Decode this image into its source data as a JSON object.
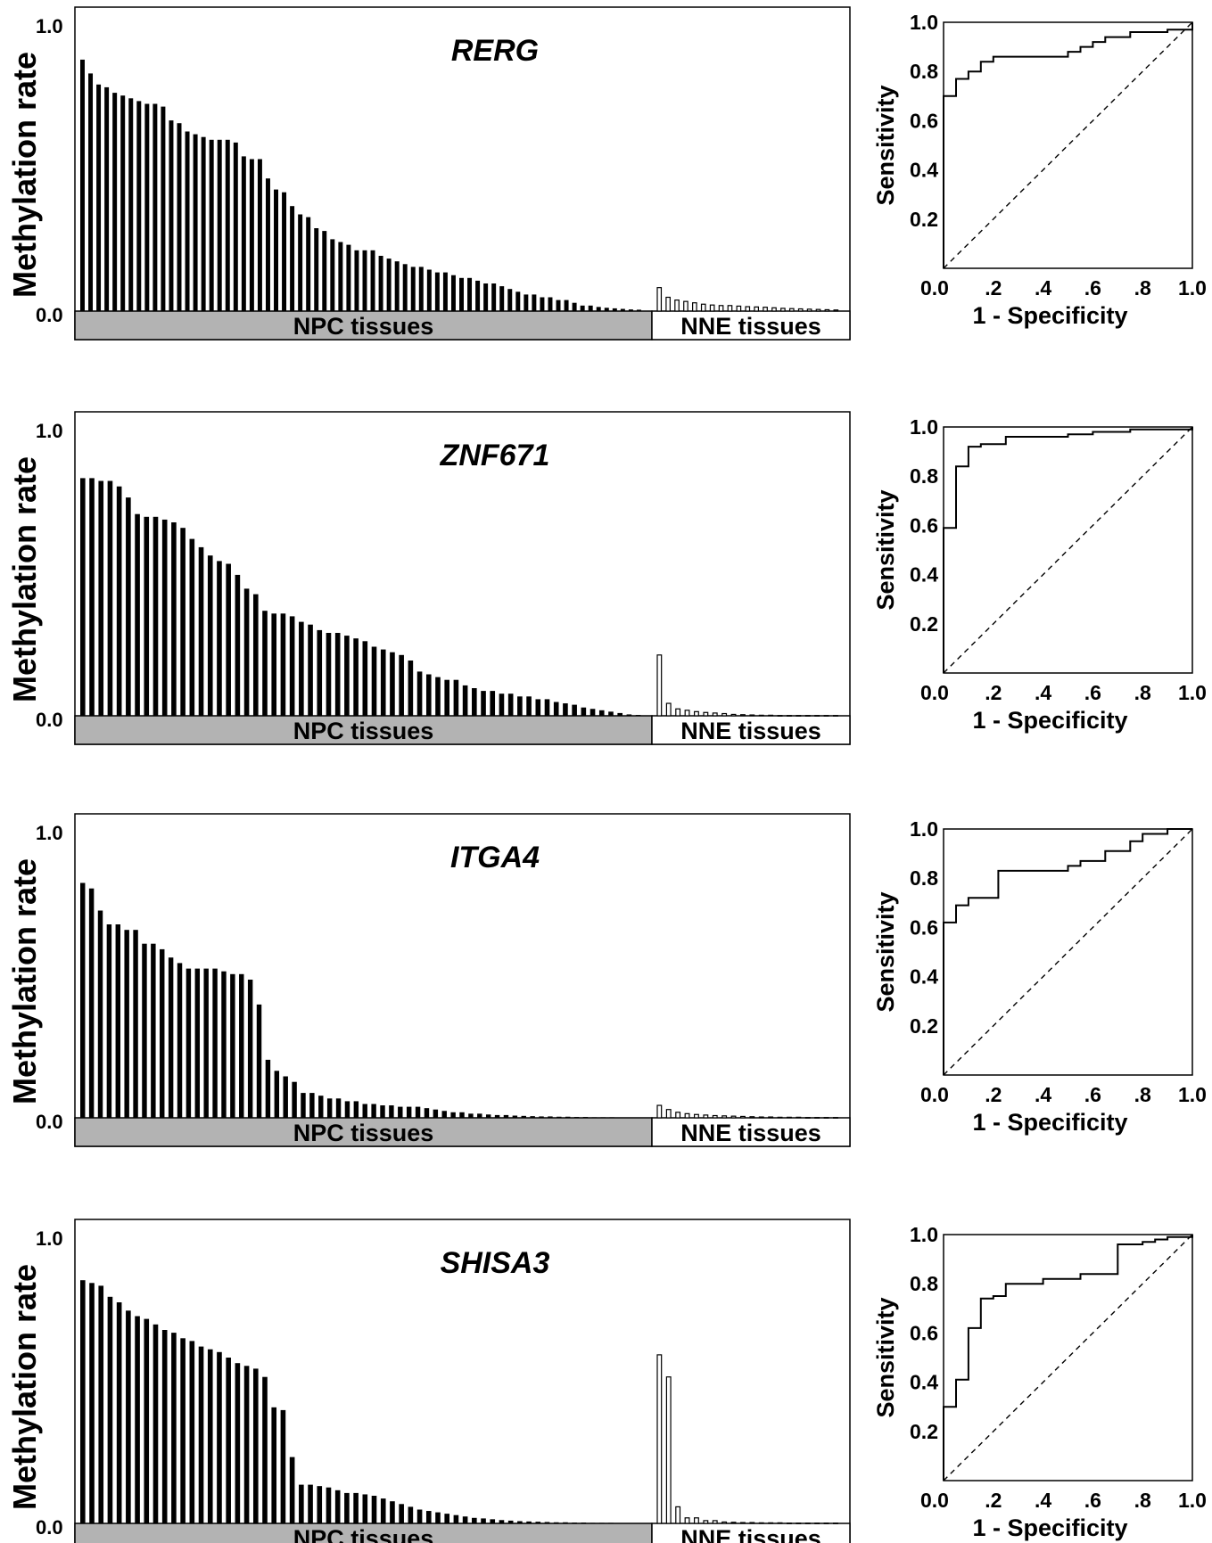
{
  "colors": {
    "npc_bar": "#000000",
    "nne_bar": "#ffffff",
    "npc_band": "#b3b3b3",
    "nne_band": "#ffffff"
  },
  "chart_data": [
    {
      "type": "bar",
      "gene": "RERG",
      "ylabel": "Methylation rate",
      "ylim": [
        0,
        1.0
      ],
      "yticks": [
        "0.0",
        "1.0"
      ],
      "groups": [
        "NPC tissues",
        "NNE tissues"
      ],
      "npc_values": [
        0.91,
        0.86,
        0.82,
        0.81,
        0.79,
        0.78,
        0.77,
        0.76,
        0.75,
        0.75,
        0.74,
        0.69,
        0.68,
        0.65,
        0.64,
        0.63,
        0.62,
        0.62,
        0.62,
        0.61,
        0.56,
        0.55,
        0.55,
        0.48,
        0.44,
        0.43,
        0.38,
        0.35,
        0.34,
        0.3,
        0.29,
        0.26,
        0.25,
        0.24,
        0.22,
        0.22,
        0.22,
        0.2,
        0.19,
        0.18,
        0.17,
        0.16,
        0.16,
        0.15,
        0.14,
        0.14,
        0.13,
        0.12,
        0.12,
        0.11,
        0.1,
        0.1,
        0.09,
        0.08,
        0.07,
        0.06,
        0.06,
        0.05,
        0.05,
        0.04,
        0.04,
        0.03,
        0.02,
        0.02,
        0.015,
        0.012,
        0.01,
        0.008,
        0.006,
        0.005
      ],
      "nne_values": [
        0.085,
        0.05,
        0.04,
        0.035,
        0.03,
        0.025,
        0.022,
        0.02,
        0.02,
        0.018,
        0.016,
        0.015,
        0.014,
        0.012,
        0.01,
        0.009,
        0.008,
        0.007,
        0.006,
        0.005,
        0.004
      ],
      "roc": {
        "xlabel": "1 - Specificity",
        "ylabel": "Sensitivity",
        "xticks": [
          "0.0",
          ".2",
          ".4",
          ".6",
          ".8",
          "1.0"
        ],
        "yticks": [
          "0.2",
          "0.4",
          "0.6",
          "0.8",
          "1.0"
        ],
        "points": [
          [
            0,
            0
          ],
          [
            0,
            0.7
          ],
          [
            0.05,
            0.7
          ],
          [
            0.05,
            0.77
          ],
          [
            0.1,
            0.77
          ],
          [
            0.1,
            0.8
          ],
          [
            0.15,
            0.8
          ],
          [
            0.15,
            0.84
          ],
          [
            0.2,
            0.84
          ],
          [
            0.2,
            0.86
          ],
          [
            0.5,
            0.86
          ],
          [
            0.5,
            0.88
          ],
          [
            0.55,
            0.88
          ],
          [
            0.55,
            0.9
          ],
          [
            0.6,
            0.9
          ],
          [
            0.6,
            0.92
          ],
          [
            0.65,
            0.92
          ],
          [
            0.65,
            0.94
          ],
          [
            0.75,
            0.94
          ],
          [
            0.75,
            0.96
          ],
          [
            0.9,
            0.96
          ],
          [
            0.9,
            0.97
          ],
          [
            1.0,
            0.97
          ],
          [
            1.0,
            1.0
          ]
        ]
      }
    },
    {
      "type": "bar",
      "gene": "ZNF671",
      "ylabel": "Methylation rate",
      "ylim": [
        0,
        1.0
      ],
      "yticks": [
        "0.0",
        "1.0"
      ],
      "groups": [
        "NPC tissues",
        "NNE tissues"
      ],
      "npc_values": [
        0.86,
        0.86,
        0.85,
        0.85,
        0.83,
        0.79,
        0.73,
        0.72,
        0.72,
        0.71,
        0.7,
        0.68,
        0.64,
        0.61,
        0.58,
        0.56,
        0.55,
        0.51,
        0.46,
        0.44,
        0.38,
        0.37,
        0.37,
        0.36,
        0.34,
        0.33,
        0.31,
        0.3,
        0.3,
        0.29,
        0.28,
        0.27,
        0.25,
        0.24,
        0.23,
        0.22,
        0.2,
        0.16,
        0.15,
        0.14,
        0.13,
        0.13,
        0.11,
        0.1,
        0.09,
        0.09,
        0.08,
        0.08,
        0.07,
        0.07,
        0.06,
        0.06,
        0.05,
        0.045,
        0.04,
        0.03,
        0.025,
        0.02,
        0.015,
        0.01,
        0.005,
        0.003
      ],
      "nne_values": [
        0.22,
        0.045,
        0.025,
        0.02,
        0.015,
        0.012,
        0.01,
        0.008,
        0.005,
        0.004,
        0.003,
        0.002,
        0.002,
        0.001,
        0.001,
        0.001,
        0.001,
        0.001,
        0.001,
        0.001
      ],
      "roc": {
        "xlabel": "1 - Specificity",
        "ylabel": "Sensitivity",
        "xticks": [
          "0.0",
          ".2",
          ".4",
          ".6",
          ".8",
          "1.0"
        ],
        "yticks": [
          "0.2",
          "0.4",
          "0.6",
          "0.8",
          "1.0"
        ],
        "points": [
          [
            0,
            0
          ],
          [
            0,
            0.59
          ],
          [
            0.05,
            0.59
          ],
          [
            0.05,
            0.84
          ],
          [
            0.1,
            0.84
          ],
          [
            0.1,
            0.92
          ],
          [
            0.15,
            0.92
          ],
          [
            0.15,
            0.93
          ],
          [
            0.25,
            0.93
          ],
          [
            0.25,
            0.96
          ],
          [
            0.5,
            0.96
          ],
          [
            0.5,
            0.97
          ],
          [
            0.6,
            0.97
          ],
          [
            0.6,
            0.98
          ],
          [
            0.75,
            0.98
          ],
          [
            0.75,
            0.99
          ],
          [
            1.0,
            0.99
          ],
          [
            1.0,
            1.0
          ]
        ]
      }
    },
    {
      "type": "bar",
      "gene": "ITGA4",
      "ylabel": "Methylation rate",
      "ylim": [
        0,
        1.0
      ],
      "yticks": [
        "0.0",
        "1.0"
      ],
      "groups": [
        "NPC tissues",
        "NNE tissues"
      ],
      "npc_values": [
        0.85,
        0.83,
        0.75,
        0.7,
        0.7,
        0.68,
        0.68,
        0.63,
        0.63,
        0.61,
        0.58,
        0.56,
        0.54,
        0.54,
        0.54,
        0.54,
        0.53,
        0.52,
        0.52,
        0.5,
        0.41,
        0.21,
        0.17,
        0.15,
        0.13,
        0.09,
        0.09,
        0.08,
        0.07,
        0.07,
        0.06,
        0.06,
        0.05,
        0.05,
        0.045,
        0.045,
        0.04,
        0.04,
        0.04,
        0.035,
        0.03,
        0.025,
        0.02,
        0.02,
        0.015,
        0.015,
        0.012,
        0.01,
        0.01,
        0.008,
        0.007,
        0.006,
        0.005,
        0.005,
        0.004,
        0.004,
        0.003,
        0.003,
        0.002,
        0.002,
        0.002,
        0.001,
        0.001,
        0.001
      ],
      "nne_values": [
        0.045,
        0.03,
        0.02,
        0.015,
        0.012,
        0.01,
        0.008,
        0.007,
        0.006,
        0.005,
        0.004,
        0.003,
        0.003,
        0.002,
        0.002,
        0.002,
        0.001,
        0.001,
        0.001,
        0.001
      ],
      "roc": {
        "xlabel": "1 - Specificity",
        "ylabel": "Sensitivity",
        "xticks": [
          "0.0",
          ".2",
          ".4",
          ".6",
          ".8",
          "1.0"
        ],
        "yticks": [
          "0.2",
          "0.4",
          "0.6",
          "0.8",
          "1.0"
        ],
        "points": [
          [
            0,
            0
          ],
          [
            0,
            0.62
          ],
          [
            0.05,
            0.62
          ],
          [
            0.05,
            0.69
          ],
          [
            0.1,
            0.69
          ],
          [
            0.1,
            0.72
          ],
          [
            0.22,
            0.72
          ],
          [
            0.22,
            0.83
          ],
          [
            0.5,
            0.83
          ],
          [
            0.5,
            0.85
          ],
          [
            0.55,
            0.85
          ],
          [
            0.55,
            0.87
          ],
          [
            0.65,
            0.87
          ],
          [
            0.65,
            0.91
          ],
          [
            0.75,
            0.91
          ],
          [
            0.75,
            0.95
          ],
          [
            0.8,
            0.95
          ],
          [
            0.8,
            0.98
          ],
          [
            0.9,
            0.98
          ],
          [
            0.9,
            1.0
          ],
          [
            1.0,
            1.0
          ]
        ]
      }
    },
    {
      "type": "bar",
      "gene": "SHISA3",
      "ylabel": "Methylation rate",
      "ylim": [
        0,
        1.0
      ],
      "yticks": [
        "0.0",
        "1.0"
      ],
      "groups": [
        "NPC tissues",
        "NNE tissues"
      ],
      "npc_values": [
        0.88,
        0.87,
        0.86,
        0.82,
        0.8,
        0.77,
        0.75,
        0.74,
        0.72,
        0.7,
        0.69,
        0.67,
        0.66,
        0.64,
        0.63,
        0.62,
        0.6,
        0.58,
        0.57,
        0.56,
        0.53,
        0.42,
        0.41,
        0.24,
        0.14,
        0.14,
        0.135,
        0.13,
        0.12,
        0.11,
        0.11,
        0.105,
        0.1,
        0.09,
        0.08,
        0.07,
        0.06,
        0.05,
        0.045,
        0.04,
        0.035,
        0.03,
        0.025,
        0.02,
        0.018,
        0.015,
        0.012,
        0.01,
        0.008,
        0.007,
        0.006,
        0.005,
        0.004,
        0.004,
        0.003,
        0.003,
        0.002,
        0.002,
        0.002,
        0.001,
        0.001,
        0.001
      ],
      "nne_values": [
        0.61,
        0.53,
        0.06,
        0.02,
        0.02,
        0.01,
        0.01,
        0.005,
        0.004,
        0.003,
        0.003,
        0.002,
        0.002,
        0.002,
        0.001,
        0.001,
        0.001,
        0.001,
        0.001,
        0.001
      ],
      "roc": {
        "xlabel": "1 - Specificity",
        "ylabel": "Sensitivity",
        "xticks": [
          "0.0",
          ".2",
          ".4",
          ".6",
          ".8",
          "1.0"
        ],
        "yticks": [
          "0.2",
          "0.4",
          "0.6",
          "0.8",
          "1.0"
        ],
        "points": [
          [
            0,
            0
          ],
          [
            0,
            0.3
          ],
          [
            0.05,
            0.3
          ],
          [
            0.05,
            0.41
          ],
          [
            0.1,
            0.41
          ],
          [
            0.1,
            0.62
          ],
          [
            0.15,
            0.62
          ],
          [
            0.15,
            0.74
          ],
          [
            0.2,
            0.74
          ],
          [
            0.2,
            0.75
          ],
          [
            0.25,
            0.75
          ],
          [
            0.25,
            0.8
          ],
          [
            0.4,
            0.8
          ],
          [
            0.4,
            0.82
          ],
          [
            0.55,
            0.82
          ],
          [
            0.55,
            0.84
          ],
          [
            0.7,
            0.84
          ],
          [
            0.7,
            0.96
          ],
          [
            0.8,
            0.96
          ],
          [
            0.8,
            0.97
          ],
          [
            0.85,
            0.97
          ],
          [
            0.85,
            0.98
          ],
          [
            0.9,
            0.98
          ],
          [
            0.9,
            0.99
          ],
          [
            1.0,
            0.99
          ],
          [
            1.0,
            1.0
          ]
        ]
      }
    }
  ]
}
